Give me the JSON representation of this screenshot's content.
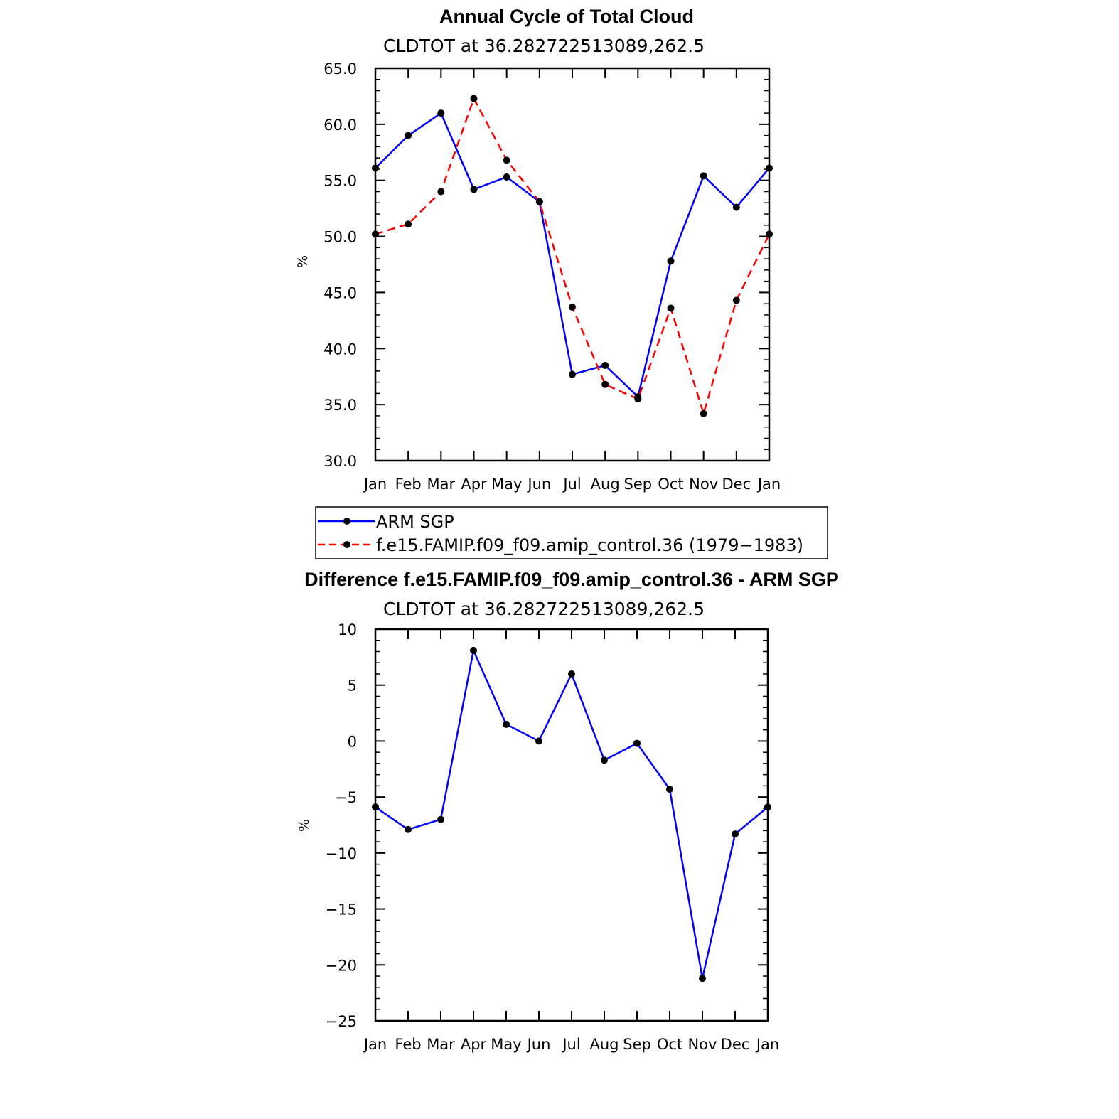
{
  "chart_data": [
    {
      "type": "line",
      "title": "Annual Cycle of Total Cloud",
      "subtitle": "CLDTOT at 36.282722513089,262.5",
      "ylabel": "%",
      "ylim": [
        30,
        65
      ],
      "yticks": [
        "30.0",
        "35.0",
        "40.0",
        "45.0",
        "50.0",
        "55.0",
        "60.0",
        "65.0"
      ],
      "categories": [
        "Jan",
        "Feb",
        "Mar",
        "Apr",
        "May",
        "Jun",
        "Jul",
        "Aug",
        "Sep",
        "Oct",
        "Nov",
        "Dec",
        "Jan"
      ],
      "series": [
        {
          "name": "ARM SGP",
          "color": "#0000ff",
          "dash": "solid",
          "values": [
            56.1,
            59.0,
            61.0,
            54.2,
            55.3,
            53.1,
            37.7,
            38.5,
            35.7,
            47.8,
            55.4,
            52.6,
            56.1
          ]
        },
        {
          "name": "f.e15.FAMIP.f09_f09.amip_control.36 (1979−1983)",
          "color": "#ff0000",
          "dash": "dashed",
          "values": [
            50.2,
            51.1,
            54.0,
            62.3,
            56.8,
            53.1,
            43.7,
            36.8,
            35.5,
            43.6,
            34.2,
            44.3,
            50.2
          ]
        }
      ],
      "legend": "below",
      "grid": false
    },
    {
      "type": "line",
      "title": "Difference f.e15.FAMIP.f09_f09.amip_control.36 - ARM SGP",
      "subtitle": "CLDTOT at 36.282722513089,262.5",
      "ylabel": "%",
      "ylim": [
        -25,
        10
      ],
      "yticks": [
        "−25",
        "−20",
        "−15",
        "−10",
        "−5",
        "0",
        "5",
        "10"
      ],
      "categories": [
        "Jan",
        "Feb",
        "Mar",
        "Apr",
        "May",
        "Jun",
        "Jul",
        "Aug",
        "Sep",
        "Oct",
        "Nov",
        "Dec",
        "Jan"
      ],
      "series": [
        {
          "color": "#0000ff",
          "dash": "solid",
          "values": [
            -5.9,
            -7.9,
            -7.0,
            8.1,
            1.5,
            0.0,
            6.0,
            -1.7,
            -0.2,
            -4.3,
            -21.2,
            -8.3,
            -5.9
          ]
        }
      ],
      "grid": false
    }
  ]
}
